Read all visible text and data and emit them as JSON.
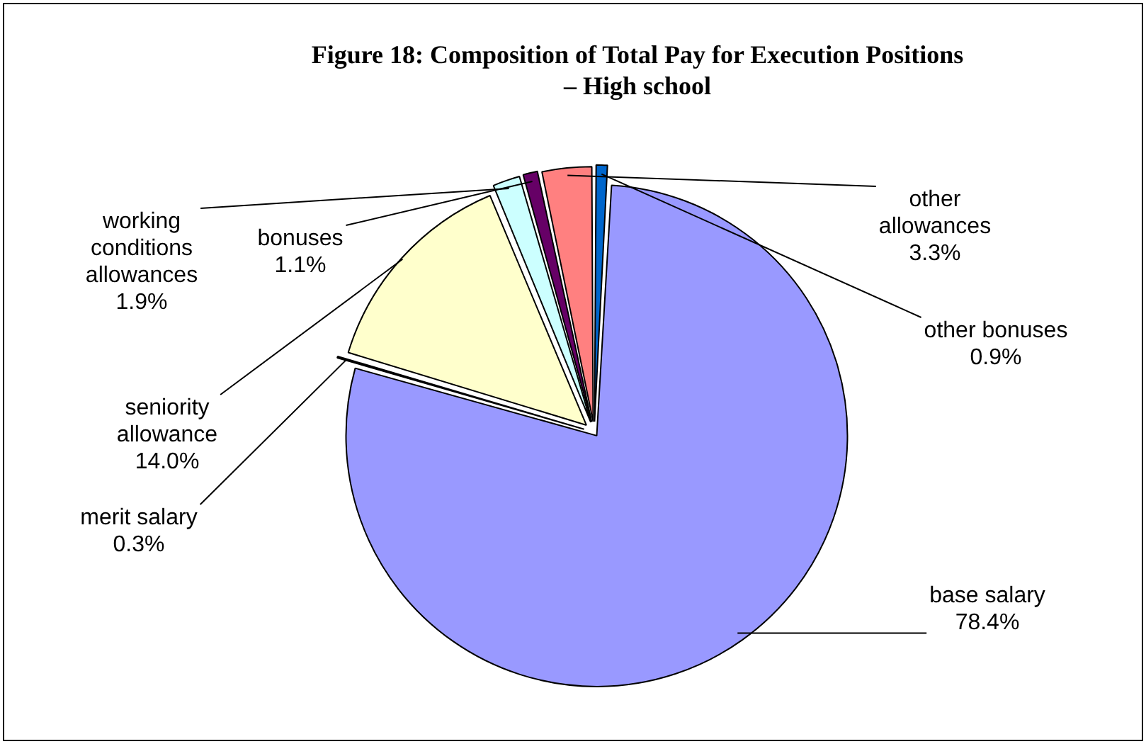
{
  "chart_data": {
    "type": "pie",
    "title": "Figure 18: Composition of Total Pay for Execution Positions – High school",
    "categories": [
      "other bonuses",
      "base salary",
      "merit salary",
      "seniority allowance",
      "working conditions allowances",
      "bonuses",
      "other allowances"
    ],
    "values": [
      0.9,
      78.4,
      0.3,
      14.0,
      1.9,
      1.1,
      3.3
    ],
    "value_labels": [
      "0.9%",
      "78.4%",
      "0.3%",
      "14.0%",
      "1.9%",
      "1.1%",
      "3.3%"
    ],
    "colors": [
      "#0066cc",
      "#9999ff",
      "#000000",
      "#ffffcc",
      "#ccffff",
      "#660066",
      "#ff8080"
    ],
    "legend": false
  }
}
